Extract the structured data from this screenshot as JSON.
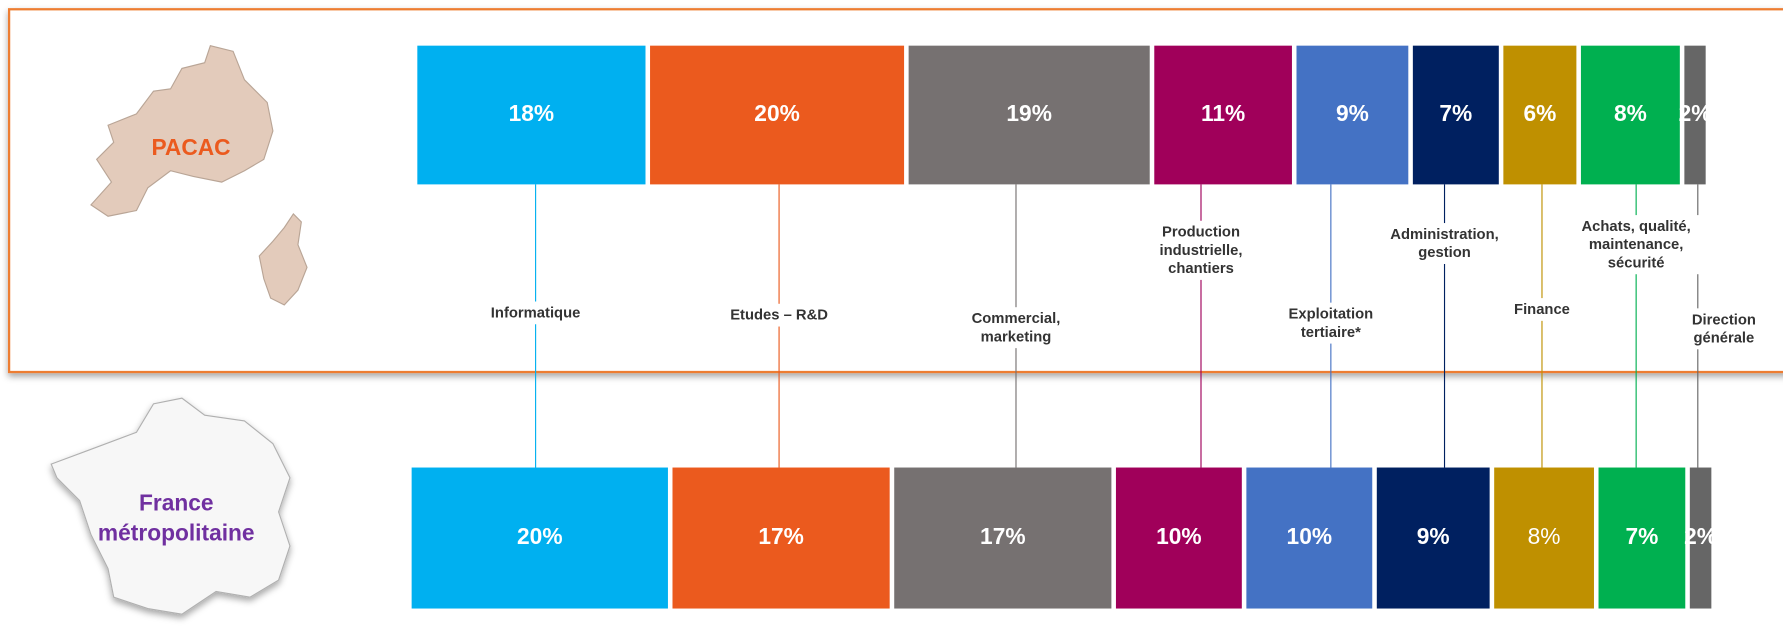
{
  "chart_data": {
    "type": "bar",
    "orientation": "horizontal",
    "stacked": true,
    "categories": [
      "PACAC",
      "France métropolitaine"
    ],
    "xlim": [
      0,
      100
    ],
    "series": [
      {
        "name": "Informatique",
        "color": "#00b0f0",
        "values": [
          18,
          20
        ],
        "value_labels": [
          "18%",
          "20%"
        ]
      },
      {
        "name": "Etudes – R&D",
        "color": "#eb5a1e",
        "values": [
          20,
          17
        ],
        "value_labels": [
          "20%",
          "17%"
        ]
      },
      {
        "name": "Commercial, marketing",
        "color": "#767171",
        "values": [
          19,
          17
        ],
        "value_labels": [
          "19%",
          "17%"
        ]
      },
      {
        "name": "Production industrielle, chantiers",
        "color": "#a0005a",
        "values": [
          11,
          10
        ],
        "value_labels": [
          "11%",
          "10%"
        ]
      },
      {
        "name": "Exploitation tertiaire*",
        "color": "#4472c4",
        "values": [
          9,
          10
        ],
        "value_labels": [
          "9%",
          "10%"
        ]
      },
      {
        "name": "Administration, gestion",
        "color": "#002060",
        "values": [
          7,
          9
        ],
        "value_labels": [
          "7%",
          "9%"
        ]
      },
      {
        "name": "Finance",
        "color": "#bf9000",
        "values": [
          6,
          8
        ],
        "value_labels": [
          "6%",
          "8%"
        ]
      },
      {
        "name": "Achats, qualité, maintenance, sécurité",
        "color": "#00b050",
        "values": [
          8,
          7
        ],
        "value_labels": [
          "8%",
          "7%"
        ]
      },
      {
        "name": "Direction générale",
        "color": "#666666",
        "values": [
          2,
          2
        ],
        "value_labels": [
          "2%",
          "2%"
        ]
      }
    ]
  }
}
